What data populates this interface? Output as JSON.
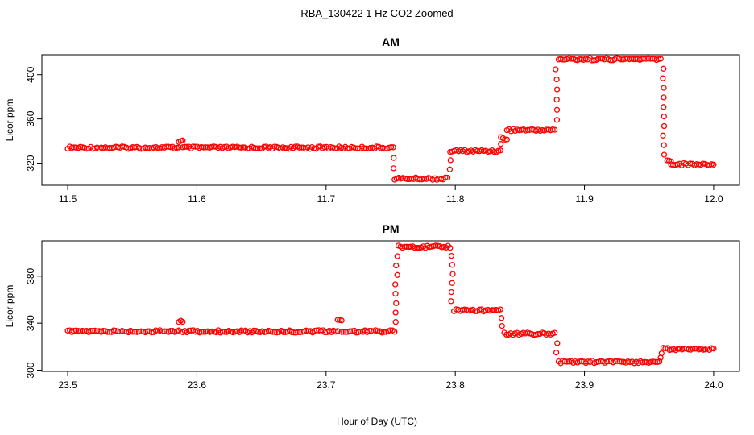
{
  "title": "RBA_130422  1 Hz CO2 Zoomed",
  "xlabel": "Hour of Day (UTC)",
  "colors": {
    "points": "#ff0000",
    "axes": "#000000",
    "background": "#ffffff"
  },
  "chart_data": [
    {
      "type": "scatter",
      "title": "AM",
      "ylabel": "Licor ppm",
      "xlim": [
        11.48,
        12.02
      ],
      "ylim": [
        300,
        418
      ],
      "xticks": [
        "11.5",
        "11.6",
        "11.7",
        "11.8",
        "11.9",
        "12.0"
      ],
      "yticks": [
        "320",
        "360",
        "400"
      ],
      "segments": [
        {
          "x": [
            11.5,
            11.586
          ],
          "y": 334
        },
        {
          "x": [
            11.586,
            11.589
          ],
          "y": 340
        },
        {
          "x": [
            11.589,
            11.752
          ],
          "y": 334
        },
        {
          "x": [
            11.753,
            11.794
          ],
          "y": 306
        },
        {
          "x": [
            11.796,
            11.835
          ],
          "y": 331
        },
        {
          "x": [
            11.837,
            11.84
          ],
          "y": 342
        },
        {
          "x": [
            11.84,
            11.877
          ],
          "y": 350
        },
        {
          "x": [
            11.88,
            11.959
          ],
          "y": 414
        },
        {
          "x": [
            11.964,
            11.967
          ],
          "y": 322
        },
        {
          "x": [
            11.967,
            12.0
          ],
          "y": 319
        }
      ],
      "transitions": [
        {
          "x": 11.7525,
          "y": [
            334,
            306
          ]
        },
        {
          "x": 11.7955,
          "y": [
            306,
            331
          ]
        },
        {
          "x": 11.836,
          "y": [
            331,
            350
          ]
        },
        {
          "x": 11.878,
          "y": [
            350,
            414
          ]
        },
        {
          "x": 11.961,
          "y": [
            414,
            319
          ]
        }
      ]
    },
    {
      "type": "scatter",
      "title": "PM",
      "ylabel": "Licor ppm",
      "xlim": [
        23.48,
        24.02
      ],
      "ylim": [
        299,
        410
      ],
      "xticks": [
        "23.5",
        "23.6",
        "23.7",
        "23.8",
        "23.9",
        "24.0"
      ],
      "yticks": [
        "300",
        "340",
        "380"
      ],
      "segments": [
        {
          "x": [
            23.5,
            23.586
          ],
          "y": 333
        },
        {
          "x": [
            23.586,
            23.589
          ],
          "y": 342
        },
        {
          "x": [
            23.589,
            23.709
          ],
          "y": 333
        },
        {
          "x": [
            23.709,
            23.712
          ],
          "y": 342
        },
        {
          "x": [
            23.712,
            23.753
          ],
          "y": 333
        },
        {
          "x": [
            23.756,
            23.796
          ],
          "y": 405
        },
        {
          "x": [
            23.799,
            23.835
          ],
          "y": 351
        },
        {
          "x": [
            23.838,
            23.877
          ],
          "y": 331
        },
        {
          "x": [
            23.88,
            23.958
          ],
          "y": 307
        },
        {
          "x": [
            23.961,
            24.0
          ],
          "y": 318
        }
      ],
      "transitions": [
        {
          "x": 23.7545,
          "y": [
            333,
            405
          ]
        },
        {
          "x": 23.7975,
          "y": [
            405,
            351
          ]
        },
        {
          "x": 23.8365,
          "y": [
            351,
            331
          ]
        },
        {
          "x": 23.8785,
          "y": [
            331,
            307
          ]
        },
        {
          "x": 23.9595,
          "y": [
            307,
            318
          ]
        }
      ]
    }
  ]
}
